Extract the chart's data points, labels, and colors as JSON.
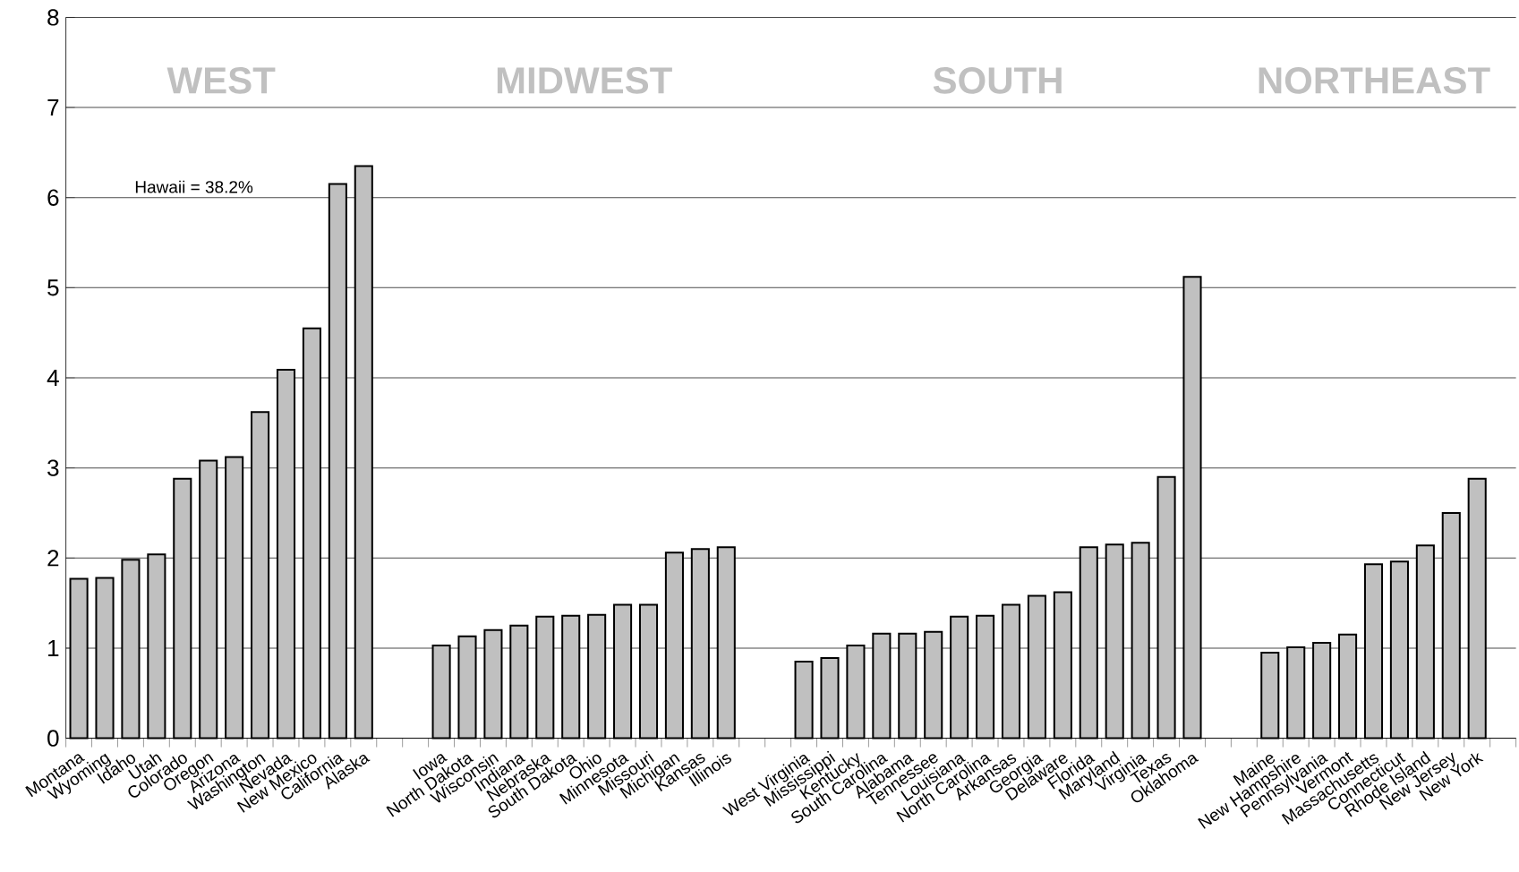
{
  "chart_data": {
    "type": "bar",
    "categories": [
      "Montana",
      "Wyoming",
      "Idaho",
      "Utah",
      "Colorado",
      "Oregon",
      "Arizona",
      "Washington",
      "Nevada",
      "New Mexico",
      "California",
      "Alaska",
      null,
      null,
      "Iowa",
      "North Dakota",
      "Wisconsin",
      "Indiana",
      "Nebraska",
      "South Dakota",
      "Ohio",
      "Minnesota",
      "Missouri",
      "Michigan",
      "Kansas",
      "Illinois",
      null,
      null,
      "West Virginia",
      "Mississippi",
      "Kentucky",
      "South Carolina",
      "Alabama",
      "Tennessee",
      "Louisiana",
      "North Carolina",
      "Arkansas",
      "Georgia",
      "Delaware",
      "Florida",
      "Maryland",
      "Virginia",
      "Texas",
      "Oklahoma",
      null,
      null,
      "Maine",
      "New Hampshire",
      "Pennsylvania",
      "Vermont",
      "Massachusetts",
      "Connecticut",
      "Rhode Island",
      "New Jersey",
      "New York",
      null
    ],
    "values": [
      1.77,
      1.78,
      1.98,
      2.04,
      2.88,
      3.08,
      3.12,
      3.62,
      4.09,
      4.55,
      6.15,
      6.35,
      null,
      null,
      1.03,
      1.13,
      1.2,
      1.25,
      1.35,
      1.36,
      1.37,
      1.48,
      1.48,
      2.06,
      2.1,
      2.12,
      null,
      null,
      0.85,
      0.89,
      1.03,
      1.16,
      1.16,
      1.18,
      1.35,
      1.36,
      1.48,
      1.58,
      1.62,
      2.12,
      2.15,
      2.17,
      2.9,
      5.12,
      null,
      null,
      0.95,
      1.01,
      1.06,
      1.15,
      1.93,
      1.96,
      2.14,
      2.5,
      2.88,
      null
    ],
    "color": "#c0c0c0",
    "ylim": [
      0,
      8
    ],
    "yticks": [
      0,
      1,
      2,
      3,
      4,
      5,
      6,
      7,
      8
    ],
    "grid": "y",
    "annotations": [
      "WEST",
      "MIDWEST",
      "SOUTH",
      "NORTHEAST",
      "Hawaii = 38.2%"
    ]
  }
}
